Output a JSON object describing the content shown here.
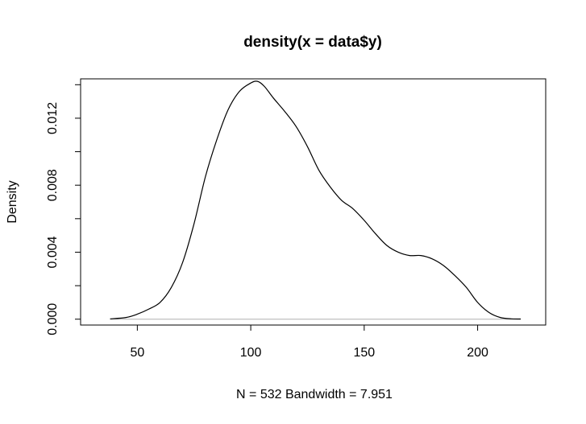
{
  "chart_data": {
    "type": "line",
    "title": "density(x = data$y)",
    "xlabel": "N = 532   Bandwidth = 7.951",
    "ylabel": "Density",
    "xlim": [
      25,
      230
    ],
    "ylim": [
      -0.00035,
      0.01435
    ],
    "x_ticks": [
      "50",
      "100",
      "150",
      "200"
    ],
    "y_ticks": [
      "0.000",
      "0.004",
      "0.008",
      "0.012"
    ],
    "y_minor_ticks": [
      0.002,
      0.006,
      0.01,
      0.014
    ],
    "grid": false,
    "baseline": 0,
    "series": [
      {
        "x": [
          38,
          45,
          50,
          55,
          60,
          65,
          70,
          75,
          80,
          85,
          90,
          95,
          100,
          103,
          106,
          110,
          115,
          120,
          125,
          130,
          135,
          140,
          145,
          150,
          155,
          160,
          165,
          170,
          175,
          180,
          185,
          190,
          195,
          200,
          205,
          210,
          215,
          219
        ],
        "y": [
          2e-05,
          0.0001,
          0.0003,
          0.0006,
          0.001,
          0.0019,
          0.0034,
          0.0057,
          0.0085,
          0.0107,
          0.0125,
          0.0136,
          0.0141,
          0.0142,
          0.0139,
          0.0132,
          0.0124,
          0.0115,
          0.0103,
          0.0089,
          0.0079,
          0.0071,
          0.0066,
          0.0059,
          0.0051,
          0.0044,
          0.004,
          0.0038,
          0.0038,
          0.0036,
          0.0032,
          0.0026,
          0.0019,
          0.001,
          0.0004,
          0.0001,
          2e-05,
          1e-05
        ]
      }
    ]
  }
}
